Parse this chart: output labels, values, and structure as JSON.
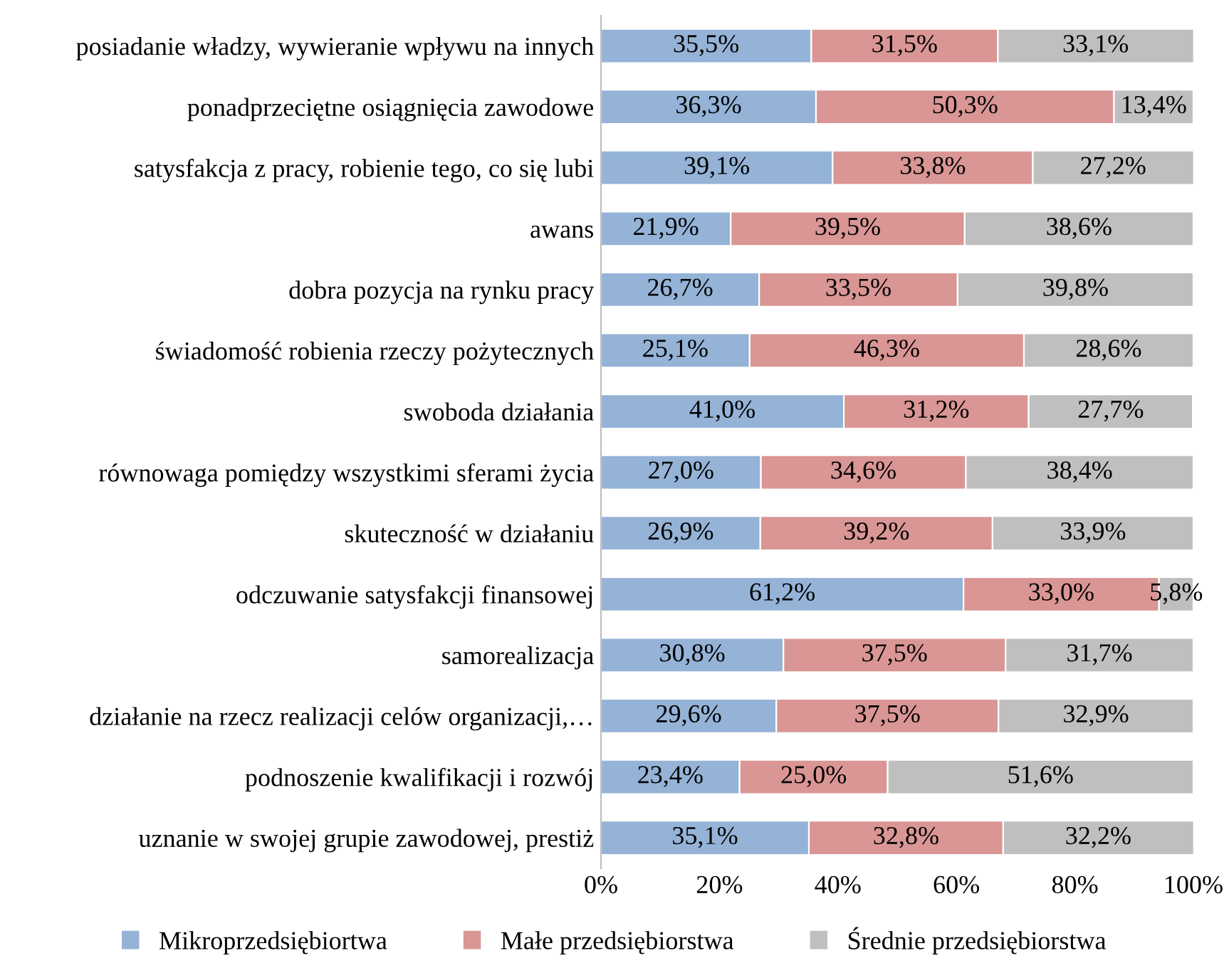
{
  "chart_data": {
    "type": "bar",
    "orientation": "horizontal",
    "stacked": true,
    "categories": [
      "posiadanie władzy, wywieranie wpływu na innych",
      "ponadprzeciętne osiągnięcia zawodowe",
      "satysfakcja z pracy, robienie tego, co się lubi",
      "awans",
      "dobra pozycja na rynku pracy",
      "świadomość robienia rzeczy pożytecznych",
      "swoboda działania",
      "równowaga pomiędzy wszystkimi sferami życia",
      "skuteczność w działaniu",
      "odczuwanie satysfakcji finansowej",
      "samorealizacja",
      "działanie na rzecz realizacji celów organizacji,…",
      "podnoszenie kwalifikacji i rozwój",
      "uznanie w swojej grupie zawodowej, prestiż"
    ],
    "series": [
      {
        "name": "Mikroprzedsiębiortwa",
        "color": "#95b3d7",
        "values": [
          35.5,
          36.3,
          39.1,
          21.9,
          26.7,
          25.1,
          41.0,
          27.0,
          26.9,
          61.2,
          30.8,
          29.6,
          23.4,
          35.1
        ],
        "value_labels": [
          "35,5%",
          "36,3%",
          "39,1%",
          "21,9%",
          "26,7%",
          "25,1%",
          "41,0%",
          "27,0%",
          "26,9%",
          "61,2%",
          "30,8%",
          "29,6%",
          "23,4%",
          "35,1%"
        ]
      },
      {
        "name": "Małe przedsiębiorstwa",
        "color": "#d99694",
        "values": [
          31.5,
          50.3,
          33.8,
          39.5,
          33.5,
          46.3,
          31.2,
          34.6,
          39.2,
          33.0,
          37.5,
          37.5,
          25.0,
          32.8
        ],
        "value_labels": [
          "31,5%",
          "50,3%",
          "33,8%",
          "39,5%",
          "33,5%",
          "46,3%",
          "31,2%",
          "34,6%",
          "39,2%",
          "33,0%",
          "37,5%",
          "37,5%",
          "25,0%",
          "32,8%"
        ]
      },
      {
        "name": "Średnie przedsiębiorstwa",
        "color": "#bfbfbf",
        "values": [
          33.1,
          13.4,
          27.2,
          38.6,
          39.8,
          28.6,
          27.7,
          38.4,
          33.9,
          5.8,
          31.7,
          32.9,
          51.6,
          32.2
        ],
        "value_labels": [
          "33,1%",
          "13,4%",
          "27,2%",
          "38,6%",
          "39,8%",
          "28,6%",
          "27,7%",
          "38,4%",
          "33,9%",
          "5,8%",
          "31,7%",
          "32,9%",
          "51,6%",
          "32,2%"
        ]
      }
    ],
    "xlim": [
      0,
      100
    ],
    "xticks": [
      {
        "value": 0,
        "label": "0%"
      },
      {
        "value": 20,
        "label": "20%"
      },
      {
        "value": 40,
        "label": "40%"
      },
      {
        "value": 60,
        "label": "60%"
      },
      {
        "value": 80,
        "label": "80%"
      },
      {
        "value": 100,
        "label": "100%"
      }
    ],
    "grid": false,
    "legend": "bottom"
  }
}
